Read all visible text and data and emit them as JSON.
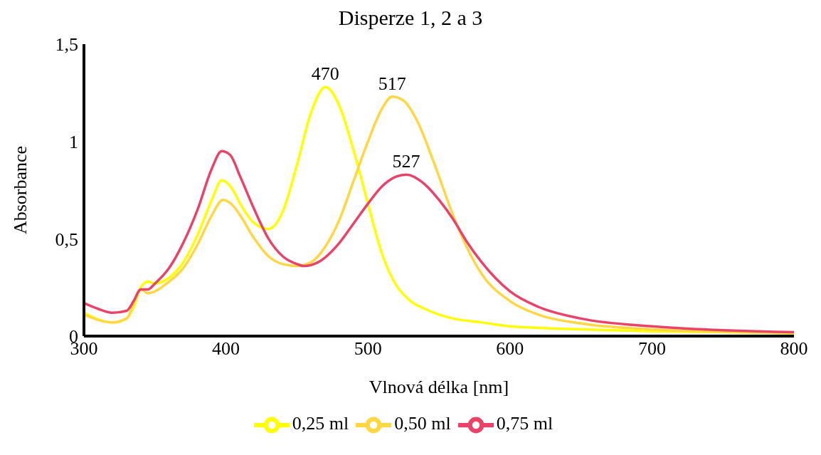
{
  "chart_data": {
    "type": "line",
    "title": "Disperze 1, 2 a 3",
    "xlabel": "Vlnová délka [nm]",
    "ylabel": "Absorbance",
    "xlim": [
      300,
      800
    ],
    "xticks": [
      300,
      400,
      500,
      600,
      700,
      800
    ],
    "ylim": [
      0,
      1.5
    ],
    "yticks": [
      0,
      {
        "value": 0.5,
        "label": "0,5"
      },
      1,
      {
        "value": 1.5,
        "label": "1,5"
      }
    ],
    "grid": false,
    "legend": "bottom",
    "marker": "none",
    "line_style": "solid",
    "annotations": [
      {
        "text": "470",
        "x": 470,
        "y": 1.28
      },
      {
        "text": "517",
        "x": 517,
        "y": 1.23
      },
      {
        "text": "527",
        "x": 527,
        "y": 0.83
      }
    ],
    "series": [
      {
        "name": "0,25 ml",
        "color": "#ffff00",
        "x": [
          300,
          320,
          330,
          335,
          340,
          345,
          350,
          360,
          370,
          380,
          390,
          397,
          405,
          410,
          420,
          430,
          440,
          450,
          460,
          470,
          480,
          490,
          500,
          510,
          520,
          530,
          540,
          560,
          580,
          600,
          650,
          700,
          800
        ],
        "values": [
          0.12,
          0.07,
          0.09,
          0.15,
          0.25,
          0.28,
          0.27,
          0.3,
          0.38,
          0.52,
          0.7,
          0.8,
          0.75,
          0.68,
          0.58,
          0.55,
          0.64,
          0.88,
          1.15,
          1.28,
          1.18,
          0.95,
          0.68,
          0.42,
          0.26,
          0.18,
          0.14,
          0.09,
          0.07,
          0.05,
          0.035,
          0.025,
          0.015
        ]
      },
      {
        "name": "0,50 ml",
        "color": "#ffd743",
        "x": [
          300,
          320,
          330,
          340,
          345,
          350,
          360,
          370,
          380,
          390,
          398,
          405,
          410,
          420,
          430,
          440,
          450,
          460,
          470,
          480,
          490,
          500,
          510,
          517,
          525,
          535,
          545,
          560,
          570,
          580,
          600,
          620,
          650,
          700,
          800
        ],
        "values": [
          0.11,
          0.07,
          0.09,
          0.24,
          0.22,
          0.23,
          0.28,
          0.35,
          0.47,
          0.62,
          0.7,
          0.67,
          0.62,
          0.5,
          0.41,
          0.37,
          0.36,
          0.38,
          0.46,
          0.6,
          0.8,
          1.0,
          1.17,
          1.23,
          1.21,
          1.1,
          0.92,
          0.62,
          0.45,
          0.32,
          0.18,
          0.11,
          0.065,
          0.035,
          0.015
        ]
      },
      {
        "name": "0,75 ml",
        "color": "#e9436a",
        "x": [
          300,
          310,
          320,
          330,
          335,
          340,
          345,
          350,
          360,
          370,
          380,
          390,
          397,
          403,
          410,
          420,
          430,
          440,
          450,
          455,
          465,
          480,
          490,
          500,
          510,
          520,
          527,
          540,
          550,
          560,
          570,
          580,
          600,
          620,
          650,
          700,
          800
        ],
        "values": [
          0.17,
          0.14,
          0.12,
          0.13,
          0.18,
          0.24,
          0.24,
          0.27,
          0.35,
          0.48,
          0.65,
          0.86,
          0.95,
          0.93,
          0.82,
          0.65,
          0.5,
          0.41,
          0.37,
          0.36,
          0.38,
          0.48,
          0.58,
          0.68,
          0.77,
          0.82,
          0.83,
          0.78,
          0.7,
          0.6,
          0.48,
          0.38,
          0.23,
          0.15,
          0.09,
          0.05,
          0.02
        ]
      }
    ]
  }
}
